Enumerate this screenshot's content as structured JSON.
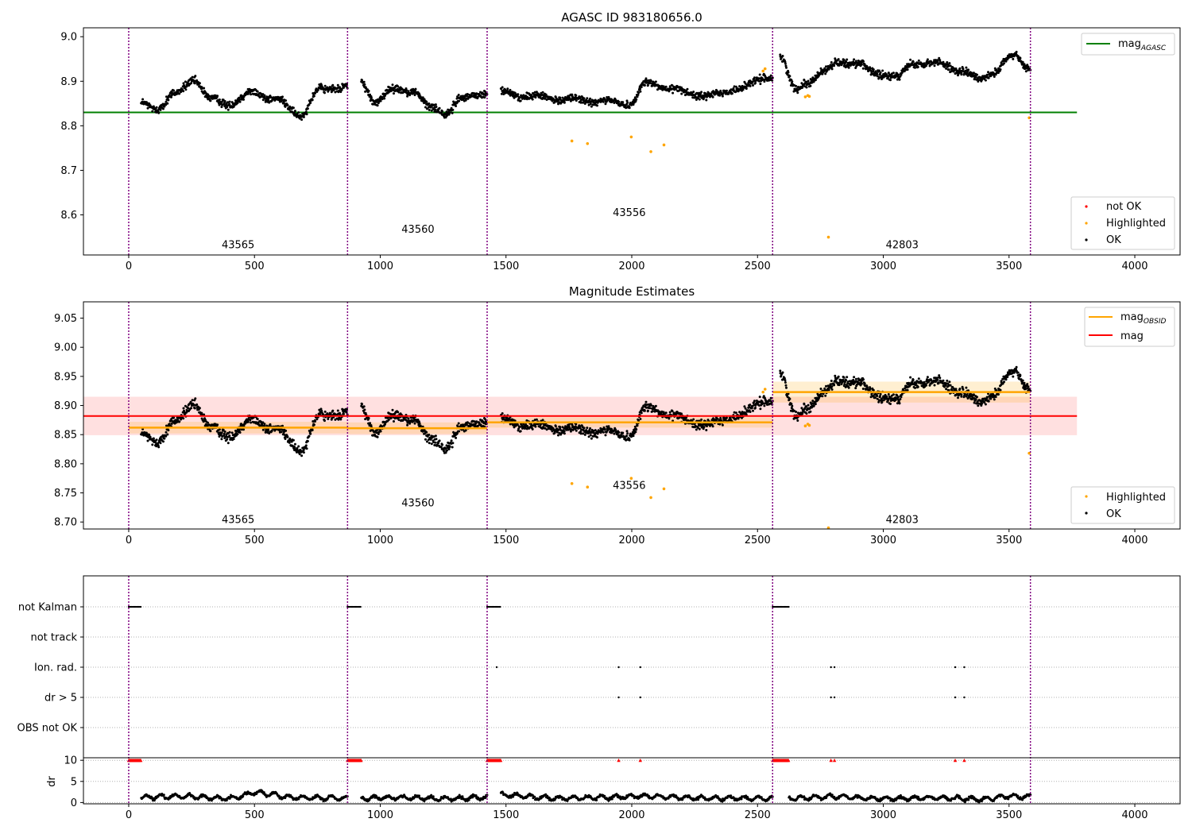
{
  "figure": {
    "title_top": "AGASC ID 983180656.0",
    "title_mid": "Magnitude Estimates"
  },
  "colors": {
    "ok": "#000000",
    "highlighted": "#ffa500",
    "not_ok": "#ff0000",
    "mag_agasc": "#008000",
    "mag": "#ff0000",
    "mag_obsid": "#ffa500",
    "boundary": "#800080"
  },
  "chart_data": [
    {
      "panel": "top",
      "type": "scatter",
      "title": "AGASC ID 983180656.0",
      "xlim": [
        -180,
        4180
      ],
      "ylim": [
        8.51,
        9.02
      ],
      "xticks": [
        0,
        500,
        1000,
        1500,
        2000,
        2500,
        3000,
        3500,
        4000
      ],
      "yticks": [
        8.6,
        8.7,
        8.8,
        8.9,
        9.0
      ],
      "legend_lines": [
        {
          "name": "mag$_{AGASC}$",
          "label": "mag",
          "sub": "AGASC",
          "color": "#008000"
        }
      ],
      "legend_points": [
        {
          "name": "not OK",
          "color": "#ff0000"
        },
        {
          "name": "Highlighted",
          "color": "#ffa500"
        },
        {
          "name": "OK",
          "color": "#000000"
        }
      ],
      "mag_agasc": {
        "value": 8.83,
        "x": [
          -180,
          3770
        ]
      },
      "obsid_labels": [
        {
          "text": "43565",
          "x": 435,
          "y": 8.525
        },
        {
          "text": "43560",
          "x": 1150,
          "y": 8.56
        },
        {
          "text": "43556",
          "x": 1990,
          "y": 8.597
        },
        {
          "text": "42803",
          "x": 3075,
          "y": 8.525
        }
      ],
      "boundaries": [
        0,
        870,
        1425,
        2560,
        3585
      ],
      "ok_segments": [
        {
          "x0": 50,
          "x1": 870,
          "anchors": [
            [
              50,
              8.85
            ],
            [
              120,
              8.84
            ],
            [
              180,
              8.87
            ],
            [
              260,
              8.905
            ],
            [
              320,
              8.86
            ],
            [
              400,
              8.85
            ],
            [
              500,
              8.875
            ],
            [
              580,
              8.86
            ],
            [
              680,
              8.825
            ],
            [
              760,
              8.88
            ],
            [
              870,
              8.89
            ]
          ],
          "noise": 0.012
        },
        {
          "x0": 925,
          "x1": 1425,
          "anchors": [
            [
              925,
              8.895
            ],
            [
              980,
              8.855
            ],
            [
              1050,
              8.88
            ],
            [
              1130,
              8.88
            ],
            [
              1200,
              8.84
            ],
            [
              1260,
              8.83
            ],
            [
              1320,
              8.86
            ],
            [
              1425,
              8.875
            ]
          ],
          "noise": 0.012
        },
        {
          "x0": 1480,
          "x1": 2560,
          "anchors": [
            [
              1480,
              8.875
            ],
            [
              1600,
              8.865
            ],
            [
              1750,
              8.86
            ],
            [
              1870,
              8.855
            ],
            [
              1990,
              8.85
            ],
            [
              2060,
              8.895
            ],
            [
              2150,
              8.885
            ],
            [
              2250,
              8.87
            ],
            [
              2350,
              8.87
            ],
            [
              2450,
              8.89
            ],
            [
              2560,
              8.91
            ]
          ],
          "noise": 0.011
        },
        {
          "x0": 2590,
          "x1": 3585,
          "anchors": [
            [
              2590,
              8.955
            ],
            [
              2650,
              8.88
            ],
            [
              2700,
              8.9
            ],
            [
              2760,
              8.92
            ],
            [
              2830,
              8.945
            ],
            [
              2900,
              8.94
            ],
            [
              2950,
              8.92
            ],
            [
              3060,
              8.91
            ],
            [
              3120,
              8.94
            ],
            [
              3220,
              8.94
            ],
            [
              3300,
              8.925
            ],
            [
              3380,
              8.905
            ],
            [
              3430,
              8.92
            ],
            [
              3520,
              8.955
            ],
            [
              3585,
              8.93
            ]
          ],
          "noise": 0.012
        }
      ],
      "highlighted_points": [
        [
          1762,
          8.766
        ],
        [
          1824,
          8.76
        ],
        [
          1998,
          8.775
        ],
        [
          2076,
          8.742
        ],
        [
          2128,
          8.757
        ],
        [
          2522,
          8.923
        ],
        [
          2530,
          8.928
        ],
        [
          2690,
          8.865
        ],
        [
          2700,
          8.868
        ],
        [
          2706,
          8.866
        ],
        [
          2782,
          8.55
        ],
        [
          3580,
          8.818
        ]
      ]
    },
    {
      "panel": "middle",
      "type": "scatter",
      "title": "Magnitude Estimates",
      "xlim": [
        -180,
        4180
      ],
      "ylim": [
        8.688,
        9.078
      ],
      "xticks": [
        0,
        500,
        1000,
        1500,
        2000,
        2500,
        3000,
        3500,
        4000
      ],
      "yticks": [
        8.7,
        8.75,
        8.8,
        8.85,
        8.9,
        8.95,
        9.0,
        9.05
      ],
      "ytick_labels": [
        "8.70",
        "8.75",
        "8.80",
        "8.85",
        "8.90",
        "8.95",
        "9.00",
        "9.05"
      ],
      "legend_lines": [
        {
          "name": "mag$_{OBSID}$",
          "label": "mag",
          "sub": "OBSID",
          "color": "#ffa500"
        },
        {
          "name": "mag",
          "label": "mag",
          "sub": "",
          "color": "#ff0000"
        }
      ],
      "legend_points": [
        {
          "name": "Highlighted",
          "color": "#ffa500"
        },
        {
          "name": "OK",
          "color": "#000000"
        }
      ],
      "mag": {
        "value": 8.882,
        "band": [
          8.849,
          8.915
        ],
        "x": [
          -180,
          3770
        ]
      },
      "mag_obsid": [
        {
          "x0": 0,
          "x1": 870,
          "value": 8.862,
          "band": [
            8.852,
            8.872
          ]
        },
        {
          "x0": 870,
          "x1": 1425,
          "value": 8.861,
          "band": [
            8.851,
            8.871
          ]
        },
        {
          "x0": 1425,
          "x1": 2560,
          "value": 8.871,
          "band": [
            8.862,
            8.88
          ]
        },
        {
          "x0": 2560,
          "x1": 3585,
          "value": 8.923,
          "band": [
            8.905,
            8.941
          ]
        }
      ],
      "obsid_labels": [
        {
          "text": "43565",
          "x": 435,
          "y": 8.698
        },
        {
          "text": "43560",
          "x": 1150,
          "y": 8.727
        },
        {
          "text": "43556",
          "x": 1990,
          "y": 8.757
        },
        {
          "text": "42803",
          "x": 3075,
          "y": 8.698
        }
      ],
      "boundaries": [
        0,
        870,
        1425,
        2560,
        3585
      ],
      "highlighted_points": [
        [
          1762,
          8.766
        ],
        [
          1824,
          8.76
        ],
        [
          1998,
          8.775
        ],
        [
          2076,
          8.742
        ],
        [
          2128,
          8.757
        ],
        [
          2522,
          8.923
        ],
        [
          2530,
          8.928
        ],
        [
          2690,
          8.865
        ],
        [
          2700,
          8.868
        ],
        [
          2706,
          8.866
        ],
        [
          2782,
          8.69
        ],
        [
          3580,
          8.818
        ]
      ]
    },
    {
      "panel": "bottom",
      "type": "scatter",
      "xlim": [
        -180,
        4180
      ],
      "xticks": [
        0,
        500,
        1000,
        1500,
        2000,
        2500,
        3000,
        3500,
        4000
      ],
      "flag_rows": [
        "not Kalman",
        "not track",
        "Ion. rad.",
        "dr > 5",
        "OBS not OK"
      ],
      "flags": {
        "not Kalman": [
          [
            0,
            50
          ],
          [
            870,
            925
          ],
          [
            1425,
            1480
          ],
          [
            2560,
            2625
          ]
        ],
        "not track": [],
        "Ion. rad.": [
          1463,
          1948,
          2034,
          2792,
          2806,
          3286,
          3322
        ],
        "dr > 5": [
          1948,
          2034,
          2792,
          2806,
          3286,
          3322
        ],
        "OBS not OK": []
      },
      "dr": {
        "ylabel": "dr",
        "ylim": [
          -0.3,
          10.6
        ],
        "yticks": [
          0,
          5,
          10
        ],
        "cap_markers": {
          "y": 10,
          "ranges": [
            [
              0,
              50
            ],
            [
              870,
              925
            ],
            [
              1425,
              1480
            ],
            [
              2560,
              2625
            ]
          ],
          "points": [
            1948,
            2034,
            2792,
            2806,
            3286,
            3322
          ]
        },
        "segments": [
          {
            "x0": 50,
            "x1": 870,
            "anchors": [
              [
                50,
                1.2
              ],
              [
                200,
                1.5
              ],
              [
                400,
                1.0
              ],
              [
                510,
                2.3
              ],
              [
                560,
                2.0
              ],
              [
                650,
                1.2
              ],
              [
                870,
                1.0
              ]
            ]
          },
          {
            "x0": 925,
            "x1": 1425,
            "anchors": [
              [
                925,
                1.0
              ],
              [
                1100,
                1.2
              ],
              [
                1250,
                0.9
              ],
              [
                1425,
                1.2
              ]
            ]
          },
          {
            "x0": 1480,
            "x1": 2560,
            "anchors": [
              [
                1480,
                1.8
              ],
              [
                1700,
                1.0
              ],
              [
                1900,
                1.2
              ],
              [
                2050,
                1.5
              ],
              [
                2300,
                1.0
              ],
              [
                2560,
                1.0
              ]
            ]
          },
          {
            "x0": 2625,
            "x1": 3585,
            "anchors": [
              [
                2625,
                1.0
              ],
              [
                2800,
                1.4
              ],
              [
                3000,
                0.9
              ],
              [
                3200,
                1.1
              ],
              [
                3400,
                0.8
              ],
              [
                3500,
                1.5
              ],
              [
                3585,
                1.3
              ]
            ]
          }
        ]
      }
    }
  ]
}
